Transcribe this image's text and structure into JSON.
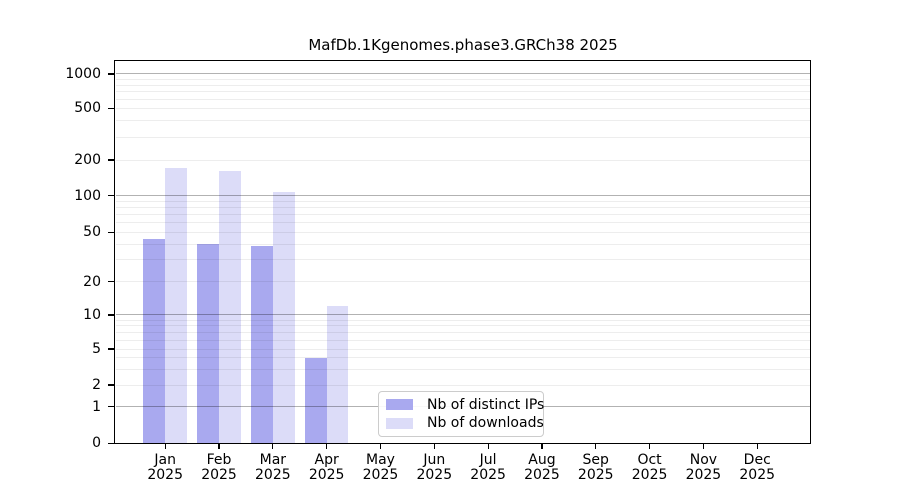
{
  "chart_data": {
    "type": "bar",
    "title": "MafDb.1Kgenomes.phase3.GRCh38 2025",
    "x_axis": {
      "months": [
        "Jan",
        "Feb",
        "Mar",
        "Apr",
        "May",
        "Jun",
        "Jul",
        "Aug",
        "Sep",
        "Oct",
        "Nov",
        "Dec"
      ],
      "year": "2025"
    },
    "y_axis": {
      "scale": "symlog",
      "tick_values": [
        0,
        1,
        2,
        5,
        10,
        20,
        50,
        100,
        200,
        500,
        1000
      ],
      "tick_labels": [
        "0",
        "1",
        "2",
        "5",
        "10",
        "20",
        "50",
        "100",
        "200",
        "500",
        "1000"
      ],
      "major_gridline_values": [
        1,
        10,
        100,
        1000
      ],
      "ylim": [
        0,
        1300
      ]
    },
    "series": [
      {
        "name": "Nb of distinct IPs",
        "color": "#a9a9ef",
        "values": [
          44,
          40,
          39,
          4,
          null,
          null,
          null,
          null,
          null,
          null,
          null,
          null
        ]
      },
      {
        "name": "Nb of downloads",
        "color": "#dcdcf8",
        "values": [
          170,
          162,
          108,
          12,
          null,
          null,
          null,
          null,
          null,
          null,
          null,
          null
        ]
      }
    ],
    "legend": {
      "position": "lower-center-inside",
      "entries": [
        "Nb of distinct IPs",
        "Nb of downloads"
      ]
    },
    "grid": true,
    "background_color": "#ffffff"
  }
}
